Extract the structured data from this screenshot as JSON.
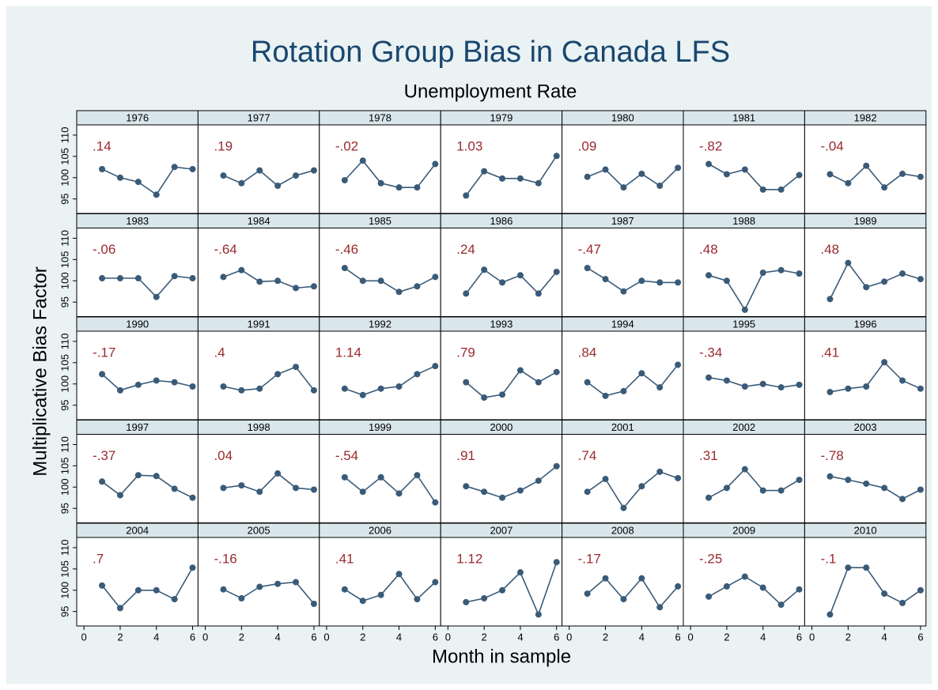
{
  "chart_data": {
    "type": "line",
    "title": "Rotation Group Bias in Canada LFS",
    "subtitle": "Unemployment Rate",
    "x_label": "Month in sample",
    "y_label": "Multiplicative Bias Factor",
    "x": [
      1,
      2,
      3,
      4,
      5,
      6
    ],
    "xlim": [
      -0.4,
      6.3
    ],
    "xticks": [
      0,
      2,
      4,
      6
    ],
    "ylim": [
      91.6,
      112.4
    ],
    "yticks": [
      95,
      100,
      105,
      110
    ],
    "color": "#3a5b78",
    "annotation_color": "#9a2a2f",
    "panels": [
      {
        "title": "1976",
        "annotation": ".14",
        "values": [
          102,
          100,
          99,
          96,
          102.5,
          102
        ]
      },
      {
        "title": "1977",
        "annotation": ".19",
        "values": [
          100.5,
          98.7,
          101.7,
          98.1,
          100.5,
          101.7
        ]
      },
      {
        "title": "1978",
        "annotation": "-.02",
        "values": [
          99.4,
          104,
          98.7,
          97.7,
          97.7,
          103.2
        ]
      },
      {
        "title": "1979",
        "annotation": "1.03",
        "values": [
          95.8,
          101.5,
          99.8,
          99.8,
          98.7,
          105.1
        ]
      },
      {
        "title": "1980",
        "annotation": ".09",
        "values": [
          100.2,
          101.9,
          97.7,
          100.9,
          98.1,
          102.3
        ]
      },
      {
        "title": "1981",
        "annotation": "-.82",
        "values": [
          103.2,
          100.8,
          101.9,
          97.2,
          97.2,
          100.6
        ]
      },
      {
        "title": "1982",
        "annotation": "-.04",
        "values": [
          100.8,
          98.7,
          102.8,
          97.7,
          100.9,
          100.2
        ]
      },
      {
        "title": "1983",
        "annotation": "-.06",
        "values": [
          100.6,
          100.6,
          100.6,
          96.2,
          101.1,
          100.6
        ]
      },
      {
        "title": "1984",
        "annotation": "-.64",
        "values": [
          100.9,
          102.5,
          99.8,
          100,
          98.3,
          98.7
        ]
      },
      {
        "title": "1985",
        "annotation": "-.46",
        "values": [
          103,
          100,
          100,
          97.4,
          98.7,
          100.9
        ]
      },
      {
        "title": "1986",
        "annotation": ".24",
        "values": [
          97,
          102.6,
          99.6,
          101.3,
          97,
          102.1
        ]
      },
      {
        "title": "1987",
        "annotation": "-.47",
        "values": [
          103,
          100.4,
          97.5,
          100,
          99.6,
          99.6
        ]
      },
      {
        "title": "1988",
        "annotation": ".48",
        "values": [
          101.3,
          100,
          93.2,
          101.9,
          102.5,
          101.7
        ]
      },
      {
        "title": "1989",
        "annotation": ".48",
        "values": [
          95.7,
          104.2,
          98.5,
          99.8,
          101.7,
          100.4
        ]
      },
      {
        "title": "1990",
        "annotation": "-.17",
        "values": [
          102.3,
          98.5,
          99.8,
          100.8,
          100.4,
          99.4
        ]
      },
      {
        "title": "1991",
        "annotation": ".4",
        "values": [
          99.4,
          98.5,
          98.9,
          102.3,
          104,
          98.5
        ]
      },
      {
        "title": "1992",
        "annotation": "1.14",
        "values": [
          98.9,
          97.4,
          98.9,
          99.4,
          102.3,
          104.2
        ]
      },
      {
        "title": "1993",
        "annotation": ".79",
        "values": [
          100.4,
          96.8,
          97.5,
          103.2,
          100.4,
          102.8
        ]
      },
      {
        "title": "1994",
        "annotation": ".84",
        "values": [
          100.4,
          97.2,
          98.3,
          102.5,
          99.2,
          104.5
        ]
      },
      {
        "title": "1995",
        "annotation": "-.34",
        "values": [
          101.5,
          100.8,
          99.4,
          100,
          99.2,
          99.8
        ]
      },
      {
        "title": "1996",
        "annotation": ".41",
        "values": [
          98.1,
          98.9,
          99.4,
          105.1,
          100.8,
          98.9
        ]
      },
      {
        "title": "1997",
        "annotation": "-.37",
        "values": [
          101.3,
          98.1,
          102.8,
          102.6,
          99.6,
          97.5
        ]
      },
      {
        "title": "1998",
        "annotation": ".04",
        "values": [
          99.8,
          100.4,
          98.9,
          103.2,
          99.8,
          99.4
        ]
      },
      {
        "title": "1999",
        "annotation": "-.54",
        "values": [
          102.3,
          98.9,
          102.3,
          98.5,
          102.8,
          96.4
        ]
      },
      {
        "title": "2000",
        "annotation": ".91",
        "values": [
          100.2,
          98.9,
          97.5,
          99.2,
          101.5,
          104.9
        ]
      },
      {
        "title": "2001",
        "annotation": ".74",
        "values": [
          98.9,
          101.9,
          95.1,
          100.2,
          103.6,
          102.1
        ]
      },
      {
        "title": "2002",
        "annotation": ".31",
        "values": [
          97.5,
          99.8,
          104.2,
          99.2,
          99.2,
          101.7
        ]
      },
      {
        "title": "2003",
        "annotation": "-.78",
        "values": [
          102.5,
          101.7,
          100.8,
          99.8,
          97.2,
          99.4
        ]
      },
      {
        "title": "2004",
        "annotation": ".7",
        "values": [
          101.1,
          95.8,
          100,
          100,
          97.9,
          105.3
        ]
      },
      {
        "title": "2005",
        "annotation": "-.16",
        "values": [
          100.2,
          98.1,
          100.8,
          101.5,
          101.9,
          96.8
        ]
      },
      {
        "title": "2006",
        "annotation": ".41",
        "values": [
          100.2,
          97.5,
          98.9,
          103.8,
          97.9,
          101.9
        ]
      },
      {
        "title": "2007",
        "annotation": "1.12",
        "values": [
          97.2,
          98.1,
          100,
          104.2,
          94.3,
          106.6
        ]
      },
      {
        "title": "2008",
        "annotation": "-.17",
        "values": [
          99.2,
          102.8,
          97.9,
          102.8,
          96,
          100.9
        ]
      },
      {
        "title": "2009",
        "annotation": "-.25",
        "values": [
          98.5,
          100.9,
          103.2,
          100.6,
          96.6,
          100.2
        ]
      },
      {
        "title": "2010",
        "annotation": "-.1",
        "values": [
          94.3,
          105.3,
          105.3,
          99.2,
          97,
          100
        ]
      }
    ]
  }
}
